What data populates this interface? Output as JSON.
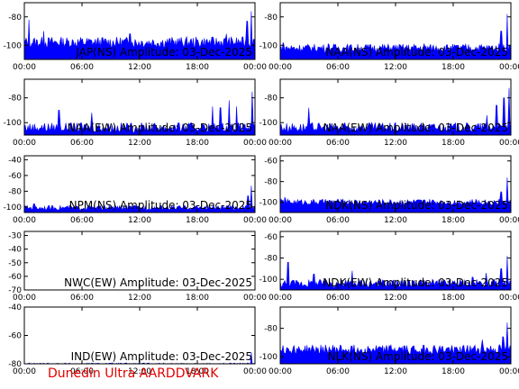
{
  "colors": {
    "trace": "#0000ff",
    "frame": "#000000",
    "footer": "#e10000"
  },
  "footer_text": "Dunedin Ultra AARDDVARK",
  "chart_data": [
    {
      "type": "area",
      "title": "JAP(NS) Amplitude: 03-Dec-2025",
      "ylim": [
        -110,
        -70
      ],
      "yticks": [
        -100,
        -80
      ],
      "x_ticks": [
        "00:00",
        "06:00",
        "12:00",
        "18:00",
        "00:00"
      ],
      "xlim_hours": [
        0,
        24
      ],
      "baseline": -98,
      "noise": 4,
      "spikes": [
        [
          0.5,
          -82
        ],
        [
          2.0,
          -90
        ],
        [
          11.0,
          -92
        ],
        [
          21.0,
          -92
        ],
        [
          23.2,
          -83
        ],
        [
          23.6,
          -76
        ]
      ]
    },
    {
      "type": "area",
      "title": "NAA(NS) Amplitude: 03-Dec-2025",
      "ylim": [
        -110,
        -70
      ],
      "yticks": [
        -100,
        -80
      ],
      "x_ticks": [
        "00:00",
        "06:00",
        "12:00",
        "18:00",
        "00:00"
      ],
      "xlim_hours": [
        0,
        24
      ],
      "baseline": -102,
      "noise": 3,
      "spikes": [
        [
          0.3,
          -98
        ],
        [
          5.0,
          -99
        ],
        [
          15.0,
          -99
        ],
        [
          23.0,
          -90
        ],
        [
          23.6,
          -78
        ]
      ]
    },
    {
      "type": "area",
      "title": "NAA(EW) Amplitude: 03-Dec-2025",
      "ylim": [
        -110,
        -65
      ],
      "yticks": [
        -100,
        -80
      ],
      "x_ticks": [
        "00:00",
        "06:00",
        "12:00",
        "18:00",
        "00:00"
      ],
      "xlim_hours": [
        0,
        24
      ],
      "baseline": -104,
      "noise": 4,
      "spikes": [
        [
          3.6,
          -90
        ],
        [
          7.0,
          -92
        ],
        [
          19.6,
          -87
        ],
        [
          20.4,
          -88
        ],
        [
          21.3,
          -82
        ],
        [
          22.1,
          -87
        ],
        [
          23.7,
          -75
        ]
      ]
    },
    {
      "type": "area",
      "title": "NAA(EW) Amplitude: 03-Dec-2025",
      "ylim": [
        -110,
        -65
      ],
      "yticks": [
        -100,
        -80
      ],
      "x_ticks": [
        "00:00",
        "06:00",
        "12:00",
        "18:00",
        "00:00"
      ],
      "xlim_hours": [
        0,
        24
      ],
      "baseline": -104,
      "noise": 4,
      "spikes": [
        [
          3.0,
          -88
        ],
        [
          21.5,
          -94
        ],
        [
          22.5,
          -86
        ],
        [
          23.3,
          -80
        ],
        [
          23.8,
          -72
        ]
      ]
    },
    {
      "type": "area",
      "title": "NPM(NS) Amplitude: 03-Dec-2025",
      "ylim": [
        -107,
        -35
      ],
      "yticks": [
        -100,
        -80,
        -60,
        -40
      ],
      "x_ticks": [
        "00:00",
        "06:00",
        "12:00",
        "18:00",
        "00:00"
      ],
      "xlim_hours": [
        0,
        24
      ],
      "baseline": -101,
      "noise": 3,
      "spikes": [
        [
          1.0,
          -96
        ],
        [
          23.3,
          -86
        ],
        [
          23.6,
          -73
        ]
      ]
    },
    {
      "type": "area",
      "title": "NDK(NS) Amplitude: 03-Dec-2025",
      "ylim": [
        -110,
        -55
      ],
      "yticks": [
        -100,
        -80,
        -60
      ],
      "x_ticks": [
        "00:00",
        "06:00",
        "12:00",
        "18:00",
        "00:00"
      ],
      "xlim_hours": [
        0,
        24
      ],
      "baseline": -100,
      "noise": 3,
      "spikes": [
        [
          0.5,
          -95
        ],
        [
          23.0,
          -90
        ],
        [
          23.6,
          -76
        ]
      ]
    },
    {
      "type": "area",
      "title": "NWC(EW) Amplitude: 03-Dec-2025",
      "ylim": [
        -70,
        -27
      ],
      "yticks": [
        -70,
        -60,
        -50,
        -40,
        -30
      ],
      "x_ticks": [
        "00:00",
        "06:00",
        "12:00",
        "18:00",
        "00:00"
      ],
      "xlim_hours": [
        0,
        24
      ],
      "baseline": null,
      "noise": 0,
      "spikes": []
    },
    {
      "type": "area",
      "title": "NDK(EW) Amplitude: 03-Dec-2025",
      "ylim": [
        -110,
        -55
      ],
      "yticks": [
        -100,
        -80,
        -60
      ],
      "x_ticks": [
        "00:00",
        "06:00",
        "12:00",
        "18:00",
        "00:00"
      ],
      "xlim_hours": [
        0,
        24
      ],
      "baseline": -104,
      "noise": 4,
      "spikes": [
        [
          0.8,
          -84
        ],
        [
          3.5,
          -95
        ],
        [
          7.5,
          -92
        ],
        [
          20.0,
          -98
        ],
        [
          21.4,
          -94
        ],
        [
          23.0,
          -90
        ],
        [
          23.6,
          -78
        ]
      ]
    },
    {
      "type": "area",
      "title": "IND(EW) Amplitude: 03-Dec-2025",
      "ylim": [
        -80,
        -40
      ],
      "yticks": [
        -80,
        -60,
        -40
      ],
      "x_ticks": [
        "00:00",
        "06:00",
        "12:00",
        "18:00",
        "00:00"
      ],
      "xlim_hours": [
        0,
        24
      ],
      "baseline": -80,
      "noise": 0.6,
      "spikes": [
        [
          23.6,
          -72
        ]
      ]
    },
    {
      "type": "area",
      "title": "NLK(NS) Amplitude: 03-Dec-2025",
      "ylim": [
        -105,
        -65
      ],
      "yticks": [
        -100,
        -80
      ],
      "x_ticks": [
        "00:00",
        "06:00",
        "12:00",
        "18:00",
        "00:00"
      ],
      "xlim_hours": [
        0,
        24
      ],
      "baseline": -95,
      "noise": 3.5,
      "spikes": [
        [
          0.3,
          -92
        ],
        [
          21.0,
          -88
        ],
        [
          23.2,
          -86
        ],
        [
          23.6,
          -76
        ]
      ]
    }
  ]
}
